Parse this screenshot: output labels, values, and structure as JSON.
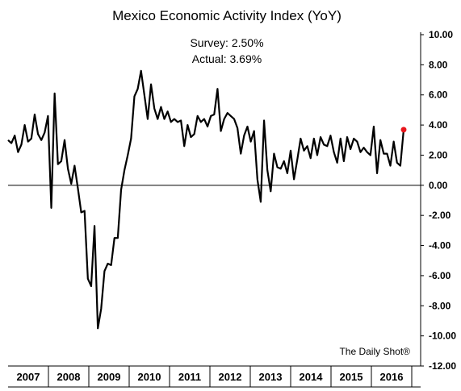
{
  "chart_data": {
    "type": "line",
    "title": "Mexico Economic Activity Index (YoY)",
    "annotations": [
      "Survey: 2.50%",
      "Actual:  3.69%"
    ],
    "source": "The Daily Shot®",
    "y_ticks": [
      "10.00",
      "8.00",
      "6.00",
      "4.00",
      "2.00",
      "0.00",
      "-2.00",
      "-4.00",
      "-6.00",
      "-8.00",
      "-10.00",
      "-12.00"
    ],
    "ylim": [
      -12,
      10
    ],
    "x_labels": [
      "2007",
      "2008",
      "2009",
      "2010",
      "2011",
      "2012",
      "2013",
      "2014",
      "2015",
      "2016"
    ],
    "grid": false,
    "highlight_point": {
      "date": "2016-12",
      "value": 3.69,
      "color": "#e8161c"
    },
    "series": [
      {
        "start": "2007-01",
        "frequency": "monthly",
        "color": "#000000",
        "values": [
          3.0,
          2.8,
          3.3,
          2.2,
          2.7,
          4.0,
          2.9,
          3.1,
          4.7,
          3.4,
          3.0,
          3.5,
          4.6,
          -1.5,
          6.1,
          1.4,
          1.6,
          3.0,
          1.1,
          0.1,
          1.3,
          -0.2,
          -1.8,
          -1.7,
          -6.2,
          -6.7,
          -2.7,
          -9.5,
          -8.2,
          -5.7,
          -5.2,
          -5.3,
          -3.5,
          -3.5,
          -0.3,
          1.0,
          2.0,
          3.1,
          5.9,
          6.4,
          7.6,
          6.0,
          4.4,
          6.7,
          5.1,
          4.4,
          5.2,
          4.4,
          4.9,
          4.2,
          4.4,
          4.2,
          4.3,
          2.6,
          4.0,
          3.2,
          3.4,
          4.6,
          4.2,
          4.4,
          3.9,
          4.6,
          4.7,
          6.4,
          3.6,
          4.4,
          4.8,
          4.6,
          4.4,
          3.8,
          2.1,
          3.3,
          3.9,
          2.9,
          3.6,
          0.4,
          -1.1,
          4.3,
          1.0,
          -0.4,
          2.1,
          1.2,
          1.1,
          1.6,
          0.8,
          2.3,
          0.4,
          1.7,
          3.1,
          2.3,
          2.6,
          1.8,
          3.1,
          2.0,
          3.2,
          2.7,
          2.6,
          3.3,
          2.2,
          1.5,
          3.1,
          1.6,
          3.2,
          2.4,
          3.1,
          2.9,
          2.2,
          2.5,
          2.2,
          2.0,
          3.9,
          0.8,
          3.0,
          2.1,
          2.1,
          1.3,
          2.9,
          1.5,
          1.3,
          3.69
        ]
      }
    ]
  }
}
